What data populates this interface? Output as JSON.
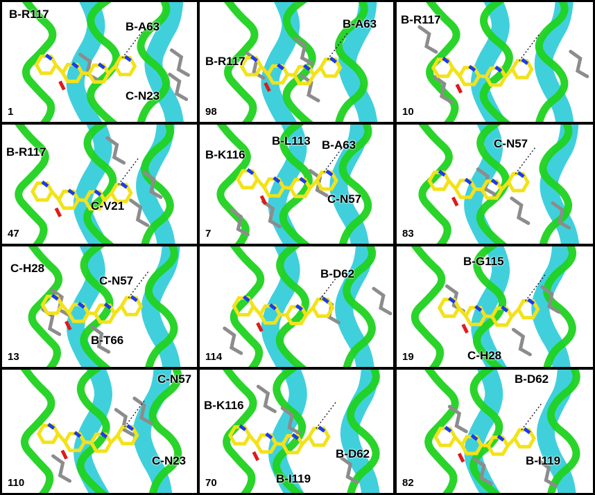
{
  "figure": {
    "colors": {
      "helix_cyan": "#1ec8d6",
      "loop_green": "#1fd21f",
      "ligand_yellow": "#f2e21a",
      "residue_gray": "#8c8c8c",
      "nitrogen_blue": "#1a3cf0",
      "oxygen_red": "#e01a1a"
    },
    "panels": [
      {
        "id": "1",
        "labels": [
          "B-R117",
          "B-A63",
          "C-N23"
        ]
      },
      {
        "id": "98",
        "labels": [
          "B-A63",
          "B-R117"
        ]
      },
      {
        "id": "10",
        "labels": [
          "B-R117"
        ]
      },
      {
        "id": "47",
        "labels": [
          "B-R117",
          "C-V21"
        ]
      },
      {
        "id": "7",
        "labels": [
          "B-L113",
          "B-K116",
          "B-A63",
          "C-N57"
        ]
      },
      {
        "id": "83",
        "labels": [
          "C-N57"
        ]
      },
      {
        "id": "13",
        "labels": [
          "C-H28",
          "C-N57",
          "B-T66"
        ]
      },
      {
        "id": "114",
        "labels": [
          "B-D62"
        ]
      },
      {
        "id": "19",
        "labels": [
          "B-G115",
          "C-H28"
        ]
      },
      {
        "id": "110",
        "labels": [
          "C-N57",
          "C-N23"
        ]
      },
      {
        "id": "70",
        "labels": [
          "B-K116",
          "B-D62",
          "B-I119"
        ]
      },
      {
        "id": "82",
        "labels": [
          "B-D62",
          "B-I119"
        ]
      }
    ]
  }
}
